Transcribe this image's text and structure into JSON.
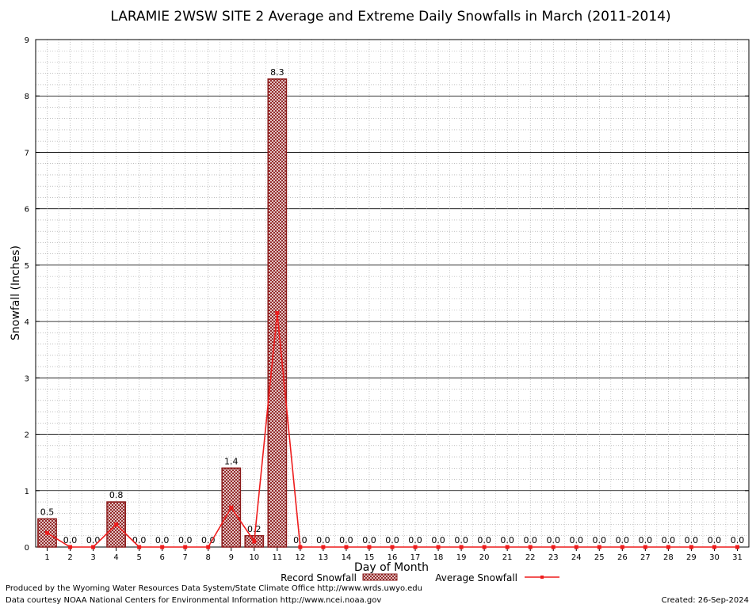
{
  "chart_data": {
    "type": "bar",
    "title": "LARAMIE 2WSW SITE 2 Average and Extreme Daily Snowfalls in March (2011-2014)",
    "xlabel": "Day of Month",
    "ylabel": "Snowfall (Inches)",
    "ylim": [
      0,
      9
    ],
    "yticks": [
      "0",
      "1",
      "2",
      "3",
      "4",
      "5",
      "6",
      "7",
      "8",
      "9"
    ],
    "categories": [
      "1",
      "2",
      "3",
      "4",
      "5",
      "6",
      "7",
      "8",
      "9",
      "10",
      "11",
      "12",
      "13",
      "14",
      "15",
      "16",
      "17",
      "18",
      "19",
      "20",
      "21",
      "22",
      "23",
      "24",
      "25",
      "26",
      "27",
      "28",
      "29",
      "30",
      "31"
    ],
    "series": [
      {
        "name": "Record Snowfall",
        "kind": "bar",
        "color": "#8b1a1a",
        "values": [
          0.5,
          0.0,
          0.0,
          0.8,
          0.0,
          0.0,
          0.0,
          0.0,
          1.4,
          0.2,
          8.3,
          0.0,
          0.0,
          0.0,
          0.0,
          0.0,
          0.0,
          0.0,
          0.0,
          0.0,
          0.0,
          0.0,
          0.0,
          0.0,
          0.0,
          0.0,
          0.0,
          0.0,
          0.0,
          0.0,
          0.0
        ],
        "labels": [
          "0.5",
          "0.0",
          "0.0",
          "0.8",
          "0.0",
          "0.0",
          "0.0",
          "0.0",
          "1.4",
          "0.2",
          "8.3",
          "0.0",
          "0.0",
          "0.0",
          "0.0",
          "0.0",
          "0.0",
          "0.0",
          "0.0",
          "0.0",
          "0.0",
          "0.0",
          "0.0",
          "0.0",
          "0.0",
          "0.0",
          "0.0",
          "0.0",
          "0.0",
          "0.0",
          "0.0"
        ]
      },
      {
        "name": "Average Snowfall",
        "kind": "line",
        "color": "#ee1c1c",
        "values": [
          0.25,
          0.0,
          0.0,
          0.4,
          0.0,
          0.0,
          0.0,
          0.0,
          0.7,
          0.1,
          4.15,
          0.0,
          0.0,
          0.0,
          0.0,
          0.0,
          0.0,
          0.0,
          0.0,
          0.0,
          0.0,
          0.0,
          0.0,
          0.0,
          0.0,
          0.0,
          0.0,
          0.0,
          0.0,
          0.0,
          0.0
        ]
      }
    ],
    "grid": true,
    "legend_position": "bottom-center"
  },
  "footer": {
    "produced_by": "Produced by the Wyoming Water Resources Data System/State Climate Office http://www.wrds.uwyo.edu",
    "data_courtesy": "Data courtesy NOAA National Centers for Environmental Information http://www.ncei.noaa.gov",
    "created": "Created:  26-Sep-2024"
  }
}
